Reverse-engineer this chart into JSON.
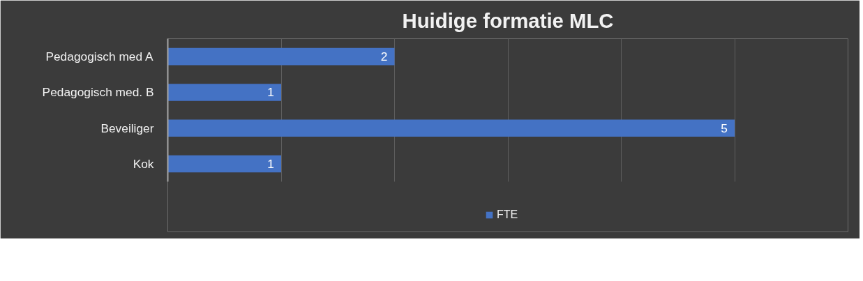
{
  "chart_data": {
    "type": "bar",
    "orientation": "horizontal",
    "title": "Huidige formatie MLC",
    "categories": [
      "Pedagogisch med A",
      "Pedagogisch med. B",
      "Beveiliger",
      "Kok"
    ],
    "series": [
      {
        "name": "FTE",
        "color": "#4472c4",
        "values": [
          2,
          1,
          5,
          1
        ]
      }
    ],
    "xlim": [
      0,
      6
    ],
    "xticks": [
      {
        "value": 0,
        "label": null
      },
      {
        "value": 1,
        "label": null
      },
      {
        "value": 2,
        "label": null
      },
      {
        "value": 3,
        "label": null
      },
      {
        "value": 4,
        "label": null
      },
      {
        "value": 5,
        "label": null
      },
      {
        "value": 6,
        "label": null
      }
    ],
    "tick_labels": "y",
    "grid": "x",
    "data_labels": true,
    "legend": "bottom"
  }
}
